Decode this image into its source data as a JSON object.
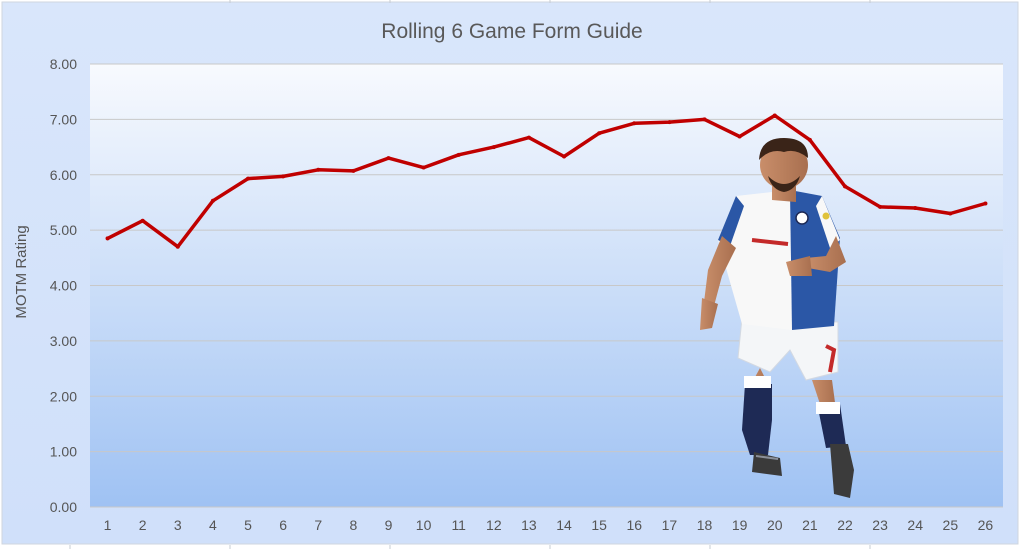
{
  "chart_data": {
    "type": "line",
    "title": "Rolling 6 Game Form Guide",
    "xlabel": "",
    "ylabel": "MOTM Rating",
    "categories": [
      "1",
      "2",
      "3",
      "4",
      "5",
      "6",
      "7",
      "8",
      "9",
      "10",
      "11",
      "12",
      "13",
      "14",
      "15",
      "16",
      "17",
      "18",
      "19",
      "20",
      "21",
      "22",
      "23",
      "24",
      "25",
      "26"
    ],
    "y_ticks": [
      "0.00",
      "1.00",
      "2.00",
      "3.00",
      "4.00",
      "5.00",
      "6.00",
      "7.00",
      "8.00"
    ],
    "ylim": [
      0,
      8
    ],
    "grid": true,
    "legend": "none",
    "series": [
      {
        "values": [
          4.85,
          5.17,
          4.7,
          5.53,
          5.93,
          5.97,
          6.09,
          6.07,
          6.3,
          6.13,
          6.36,
          6.5,
          6.67,
          6.33,
          6.75,
          6.93,
          6.95,
          7.0,
          6.69,
          7.07,
          6.63,
          5.79,
          5.42,
          5.4,
          5.3,
          5.48
        ],
        "color": "#c00000"
      }
    ]
  },
  "colors": {
    "frame_top": "#d9e6fb",
    "frame_bottom": "#d0e0fa",
    "plot_top": "#f8fafe",
    "plot_bottom": "#9fc2f3",
    "gridline": "#c8c8c8",
    "axis_text": "#555555",
    "title_text": "#595959",
    "jersey_blue": "#2b57a6",
    "sock_navy": "#1e2a55"
  },
  "decoration": {
    "photo_icon": "footballer-photo-icon"
  }
}
